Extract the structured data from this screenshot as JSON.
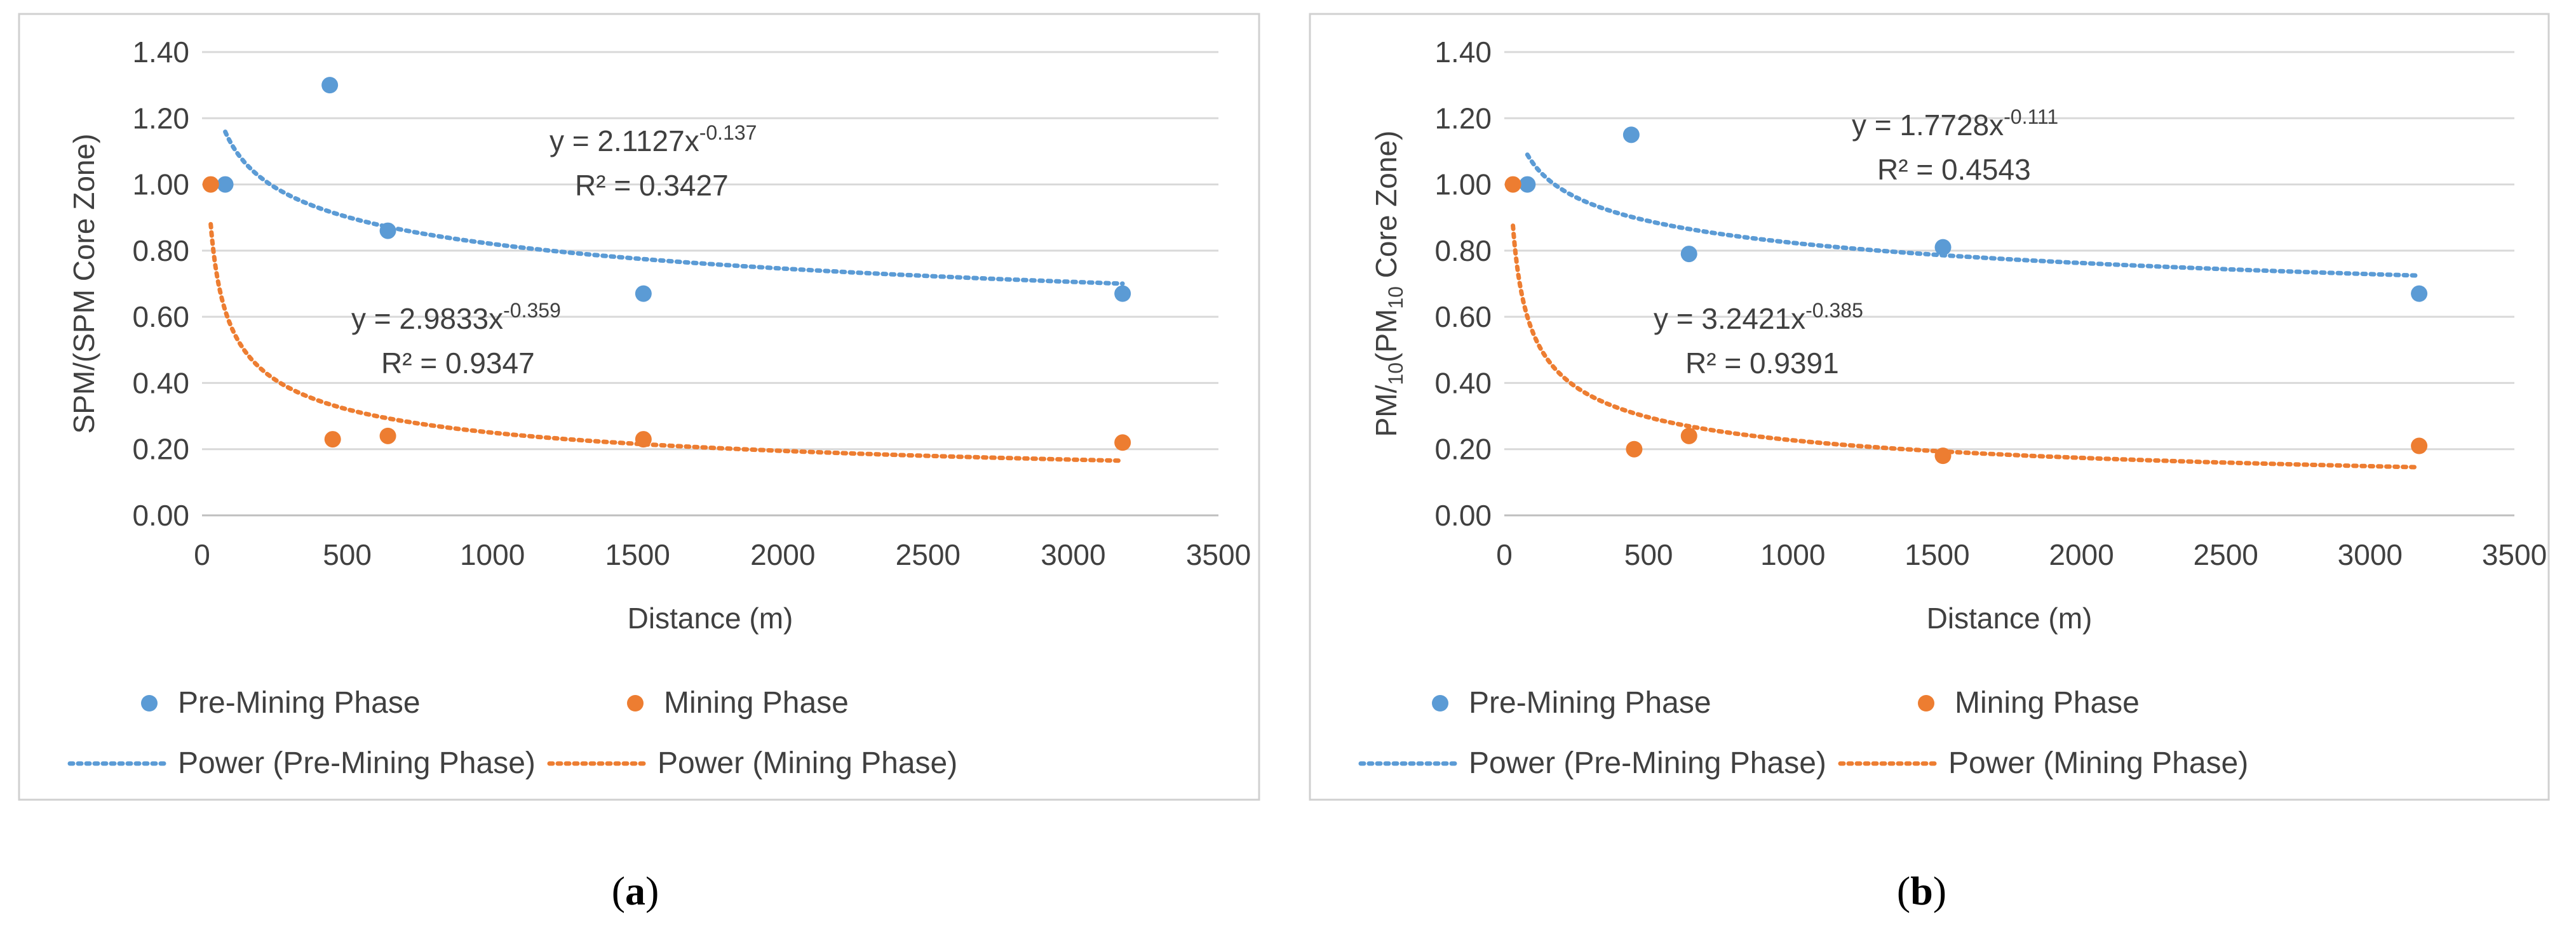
{
  "figure": {
    "panels": [
      {
        "caption_letter": "a"
      },
      {
        "caption_letter": "b"
      }
    ]
  },
  "chart_data": [
    {
      "type": "scatter",
      "title": "",
      "xlabel": "Distance (m)",
      "ylabel": "SPM/(SPM Core Zone)",
      "ylabel_parts": [
        {
          "text": "SPM/(SPM Core Zone)",
          "sub": false
        }
      ],
      "xlim": [
        0,
        3500
      ],
      "ylim": [
        0,
        1.4
      ],
      "xticks": [
        0,
        500,
        1000,
        1500,
        2000,
        2500,
        3000,
        3500
      ],
      "yticks": [
        "0.00",
        "0.20",
        "0.40",
        "0.60",
        "0.80",
        "1.00",
        "1.20",
        "1.40"
      ],
      "grid": "horizontal",
      "legend": "bottom",
      "series": [
        {
          "name": "Pre-Mining Phase",
          "color": "#5B9BD5",
          "x": [
            80,
            440,
            640,
            1520,
            3170
          ],
          "y": [
            1.0,
            1.3,
            0.86,
            0.67,
            0.67
          ]
        },
        {
          "name": "Mining Phase",
          "color": "#ED7D31",
          "x": [
            30,
            450,
            640,
            1520,
            3170
          ],
          "y": [
            1.0,
            0.23,
            0.24,
            0.23,
            0.22
          ]
        }
      ],
      "trendlines": [
        {
          "name": "Power (Pre-Mining Phase)",
          "color": "#5B9BD5",
          "a": 2.1127,
          "b": -0.137,
          "x_range": [
            80,
            3170
          ],
          "equation_base": "y = 2.1127x",
          "exponent": "-0.137",
          "r2": "R² = 0.3427"
        },
        {
          "name": "Power (Mining Phase)",
          "color": "#ED7D31",
          "a": 2.9833,
          "b": -0.359,
          "x_range": [
            30,
            3170
          ],
          "equation_base": "y = 2.9833x",
          "exponent": "-0.359",
          "r2": "R² = 0.9347"
        }
      ]
    },
    {
      "type": "scatter",
      "title": "",
      "xlabel": "Distance (m)",
      "ylabel": "PM/10(PM10 Core Zone)",
      "ylabel_parts": [
        {
          "text": "PM/",
          "sub": false
        },
        {
          "text": "10",
          "sub": true
        },
        {
          "text": "(PM",
          "sub": false
        },
        {
          "text": "10",
          "sub": true
        },
        {
          "text": " Core Zone)",
          "sub": false
        }
      ],
      "xlim": [
        0,
        3500
      ],
      "ylim": [
        0,
        1.4
      ],
      "xticks": [
        0,
        500,
        1000,
        1500,
        2000,
        2500,
        3000,
        3500
      ],
      "yticks": [
        "0.00",
        "0.20",
        "0.40",
        "0.60",
        "0.80",
        "1.00",
        "1.20",
        "1.40"
      ],
      "grid": "horizontal",
      "legend": "bottom",
      "series": [
        {
          "name": "Pre-Mining Phase",
          "color": "#5B9BD5",
          "x": [
            80,
            440,
            640,
            1520,
            3170
          ],
          "y": [
            1.0,
            1.15,
            0.79,
            0.81,
            0.67
          ]
        },
        {
          "name": "Mining Phase",
          "color": "#ED7D31",
          "x": [
            30,
            450,
            640,
            1520,
            3170
          ],
          "y": [
            1.0,
            0.2,
            0.24,
            0.18,
            0.21
          ]
        }
      ],
      "trendlines": [
        {
          "name": "Power (Pre-Mining Phase)",
          "color": "#5B9BD5",
          "a": 1.7728,
          "b": -0.111,
          "x_range": [
            80,
            3170
          ],
          "equation_base": "y = 1.7728x",
          "exponent": "-0.111",
          "r2": "R² = 0.4543"
        },
        {
          "name": "Power (Mining Phase)",
          "color": "#ED7D31",
          "a": 3.2421,
          "b": -0.385,
          "x_range": [
            30,
            3170
          ],
          "equation_base": "y = 3.2421x",
          "exponent": "-0.385",
          "r2": "R² = 0.9391"
        }
      ]
    }
  ]
}
